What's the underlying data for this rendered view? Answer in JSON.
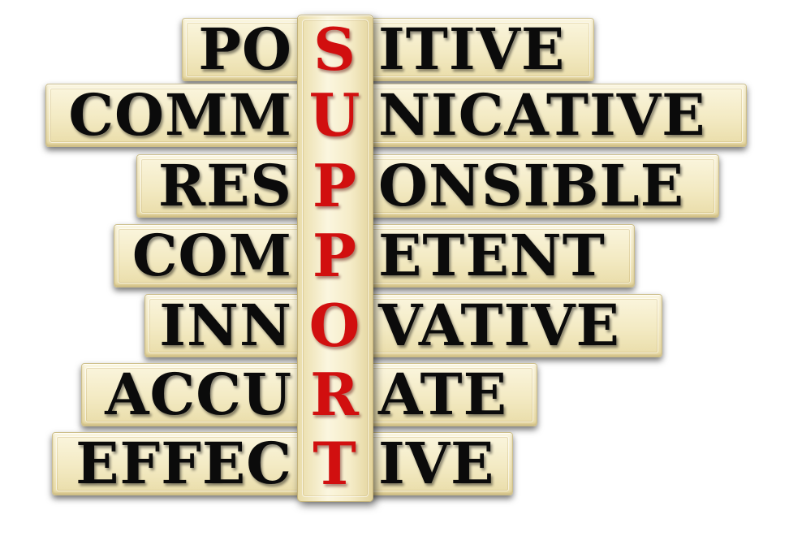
{
  "keyword": [
    "S",
    "U",
    "P",
    "P",
    "O",
    "R",
    "T"
  ],
  "rows": [
    {
      "left": "PO",
      "key": "S",
      "right": "ITIVE"
    },
    {
      "left": "COMM",
      "key": "U",
      "right": "NICATIVE"
    },
    {
      "left": "RES",
      "key": "P",
      "right": "ONSIBLE"
    },
    {
      "left": "COM",
      "key": "P",
      "right": "ETENT"
    },
    {
      "left": "INN",
      "key": "O",
      "right": "VATIVE"
    },
    {
      "left": "ACCU",
      "key": "R",
      "right": "ATE"
    },
    {
      "left": "EFFEC",
      "key": "T",
      "right": "IVE"
    }
  ],
  "colors": {
    "background": "#ffffff",
    "tile": "#f3eac3",
    "text": "#0b0b0b",
    "keyword": "#d10f0f"
  }
}
